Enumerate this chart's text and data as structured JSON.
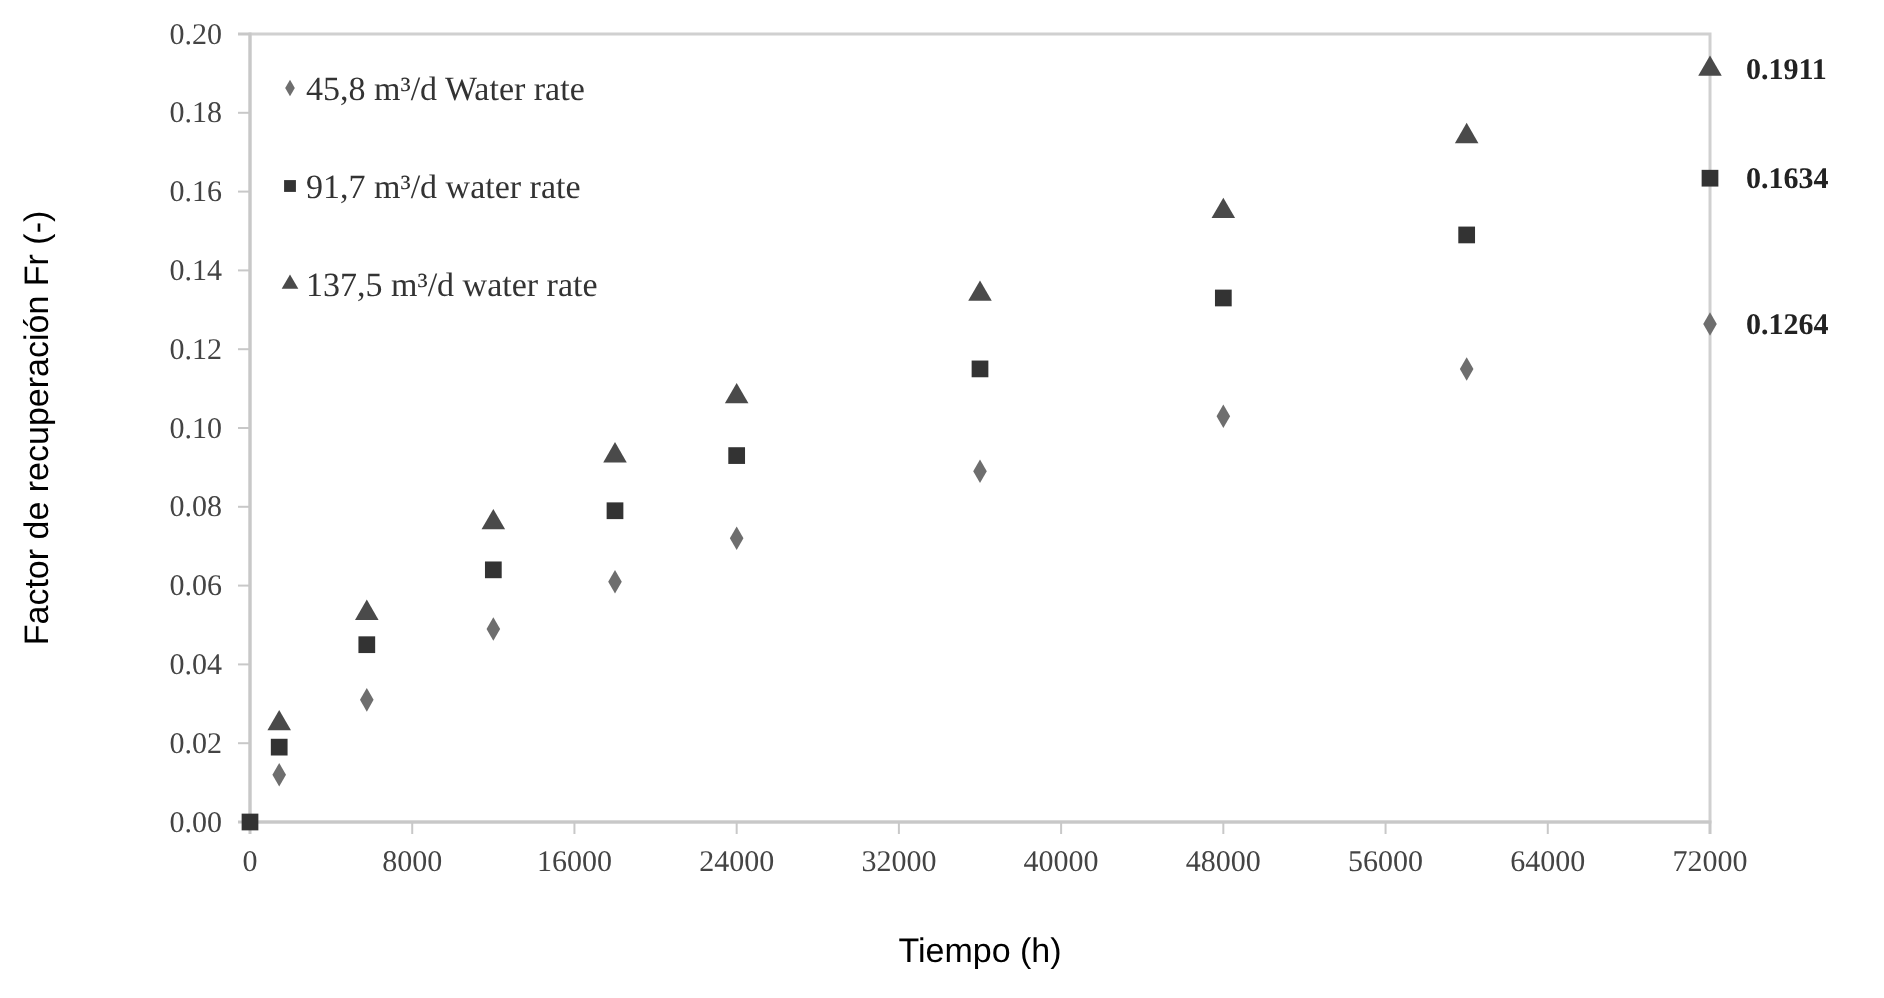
{
  "chart_data": {
    "type": "scatter",
    "xlabel": "Tiempo (h)",
    "ylabel": "Factor de recuperación Fr (-)",
    "x": [
      0,
      1440,
      5760,
      12000,
      18000,
      24000,
      36000,
      48000,
      60000,
      72000
    ],
    "series": [
      {
        "name": "45,8 m³/d Water rate",
        "color": "#6e6e6e",
        "marker": "diamond",
        "values": [
          null,
          0.012,
          0.031,
          0.049,
          0.061,
          0.072,
          0.089,
          0.103,
          0.115,
          0.1264
        ],
        "value_labels": [
          null,
          null,
          null,
          null,
          null,
          null,
          null,
          null,
          null,
          "0.1264"
        ]
      },
      {
        "name": "91,7 m³/d water rate",
        "color": "#333333",
        "marker": "square",
        "values": [
          0,
          0.019,
          0.045,
          0.064,
          0.079,
          0.093,
          0.115,
          0.133,
          0.149,
          0.1634
        ],
        "value_labels": [
          null,
          null,
          null,
          null,
          null,
          null,
          null,
          null,
          null,
          "0.1634"
        ]
      },
      {
        "name": "137,5 m³/d water rate",
        "color": "#4a4a4a",
        "marker": "triangle",
        "values": [
          null,
          0.025,
          0.053,
          0.076,
          0.093,
          0.108,
          0.134,
          0.155,
          0.174,
          0.1911
        ],
        "value_labels": [
          null,
          null,
          null,
          null,
          null,
          null,
          null,
          null,
          null,
          "0.1911"
        ]
      }
    ],
    "xlim": [
      0,
      72000
    ],
    "xticks": [
      0,
      8000,
      16000,
      24000,
      32000,
      40000,
      48000,
      56000,
      64000,
      72000
    ],
    "ylim": [
      0,
      0.2
    ],
    "yticks": [
      {
        "value": 0,
        "label": "0.00"
      },
      {
        "value": 0.02,
        "label": "0.02"
      },
      {
        "value": 0.04,
        "label": "0.04"
      },
      {
        "value": 0.06,
        "label": "0.06"
      },
      {
        "value": 0.08,
        "label": "0.08"
      },
      {
        "value": 0.1,
        "label": "0.10"
      },
      {
        "value": 0.12,
        "label": "0.12"
      },
      {
        "value": 0.14,
        "label": "0.14"
      },
      {
        "value": 0.16,
        "label": "0.16"
      },
      {
        "value": 0.18,
        "label": "0.18"
      },
      {
        "value": 0.2,
        "label": "0.20"
      }
    ],
    "grid": false,
    "legend": "top left"
  }
}
